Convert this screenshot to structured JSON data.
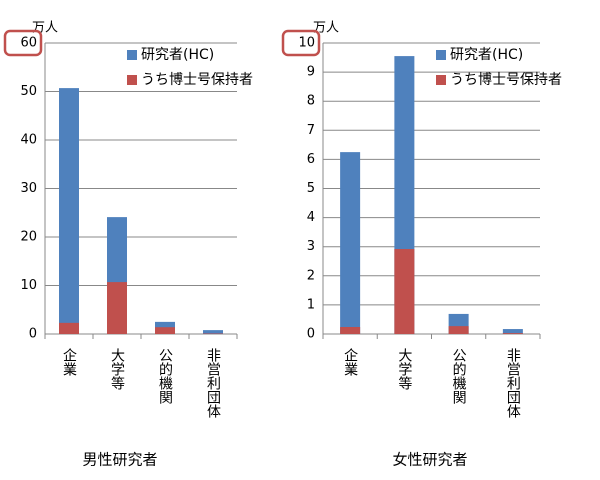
{
  "chart_data": [
    {
      "type": "bar",
      "unit": "万人",
      "xlabel": "男性研究者",
      "categories": [
        "企業",
        "大学等",
        "公的機関",
        "非営利団体"
      ],
      "series": [
        {
          "name": "研究者(HC)",
          "color": "#4f81bd",
          "values": [
            50.7,
            24.1,
            2.5,
            0.8
          ]
        },
        {
          "name": "うち博士号保持者",
          "color": "#c0504d",
          "values": [
            2.3,
            10.7,
            1.4,
            0.1
          ]
        }
      ],
      "ylim": [
        0,
        60
      ],
      "yticks": [
        0,
        10,
        20,
        30,
        40,
        50,
        60
      ],
      "grid": true
    },
    {
      "type": "bar",
      "unit": "万人",
      "xlabel": "女性研究者",
      "categories": [
        "企業",
        "大学等",
        "公的機関",
        "非営利団体"
      ],
      "series": [
        {
          "name": "研究者(HC)",
          "color": "#4f81bd",
          "values": [
            6.25,
            9.55,
            0.69,
            0.17
          ]
        },
        {
          "name": "うち博士号保持者",
          "color": "#c0504d",
          "values": [
            0.24,
            2.92,
            0.27,
            0.03
          ]
        }
      ],
      "ylim": [
        0,
        10
      ],
      "yticks": [
        0,
        1,
        2,
        3,
        4,
        5,
        6,
        7,
        8,
        9,
        10
      ],
      "grid": true
    }
  ]
}
